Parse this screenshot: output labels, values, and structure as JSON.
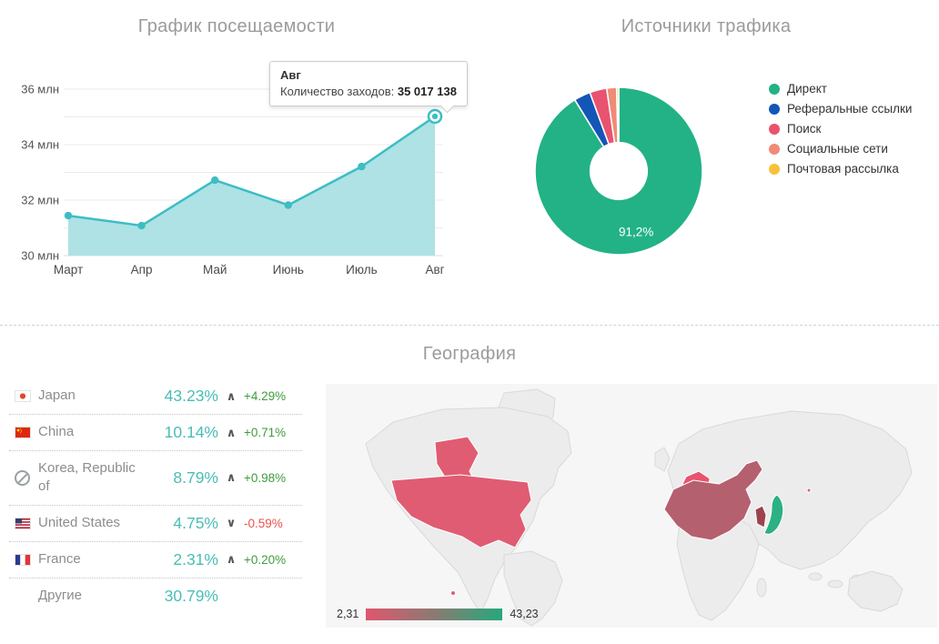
{
  "section_titles": {
    "visits": "График посещаемости",
    "sources": "Источники трафика",
    "geography": "География"
  },
  "chart_data": [
    {
      "type": "area",
      "title": "График посещаемости",
      "x": [
        "Март",
        "Апр",
        "Май",
        "Июнь",
        "Июль",
        "Авг"
      ],
      "values": [
        31.44,
        31.08,
        32.72,
        31.82,
        33.21,
        35.017138
      ],
      "unit": "млн",
      "ylim": [
        30,
        36
      ],
      "grid_step": 1,
      "ytick_labels": {
        "30": "30 млн",
        "32": "32 млн",
        "34": "34 млн",
        "36": "36 млн"
      },
      "line_color": "#3dbdc4",
      "fill_color": "#aee2e5",
      "highlight_index": 5,
      "tooltip": {
        "title": "Авг",
        "label": "Количество заходов: ",
        "value": "35 017 138"
      }
    },
    {
      "type": "pie",
      "title": "Источники трафика",
      "donut_hole_ratio": 0.34,
      "legend_position": "right",
      "series": [
        {
          "name": "Директ",
          "value": 91.2,
          "color": "#22b286",
          "label": "91,2%"
        },
        {
          "name": "Реферальные ссылки",
          "value": 3.2,
          "color": "#1356b6"
        },
        {
          "name": "Поиск",
          "value": 3.3,
          "color": "#e9536f"
        },
        {
          "name": "Социальные сети",
          "value": 1.9,
          "color": "#f08b77"
        },
        {
          "name": "Почтовая рассылка",
          "value": 0.4,
          "color": "#f9c13a"
        }
      ]
    }
  ],
  "geography": {
    "title": "География",
    "countries": [
      {
        "name": "Japan",
        "share": "43.23%",
        "trend": "up",
        "change": "+4.29%"
      },
      {
        "name": "China",
        "share": "10.14%",
        "trend": "up",
        "change": "+0.71%"
      },
      {
        "name": "Korea, Republic of",
        "share": "8.79%",
        "trend": "up",
        "change": "+0.98%"
      },
      {
        "name": "United States",
        "share": "4.75%",
        "trend": "down",
        "change": "-0.59%"
      },
      {
        "name": "France",
        "share": "2.31%",
        "trend": "up",
        "change": "+0.20%"
      },
      {
        "name": "Другие",
        "share": "30.79%"
      }
    ],
    "map": {
      "scale_min": "2,31",
      "scale_max": "43,23",
      "scale_min_color": "#e0566e",
      "scale_mid_color": "#8b7a72",
      "scale_max_color": "#26a87c",
      "country_colors": {
        "usa": "#e05c72",
        "alaska": "#e05c72",
        "hawaii": "#e05c72",
        "france": "#e8536f",
        "china": "#b5606f",
        "korea": "#9c4350",
        "japan": "#2bb183",
        "island": "#e05c72"
      }
    }
  },
  "icons": {
    "trend_up": "∧",
    "trend_down": "∨"
  },
  "colors": {
    "share_value": "#4abdb5",
    "positive": "#3f9c3b",
    "negative": "#e8534d",
    "section_title": "#9b9b9b"
  }
}
